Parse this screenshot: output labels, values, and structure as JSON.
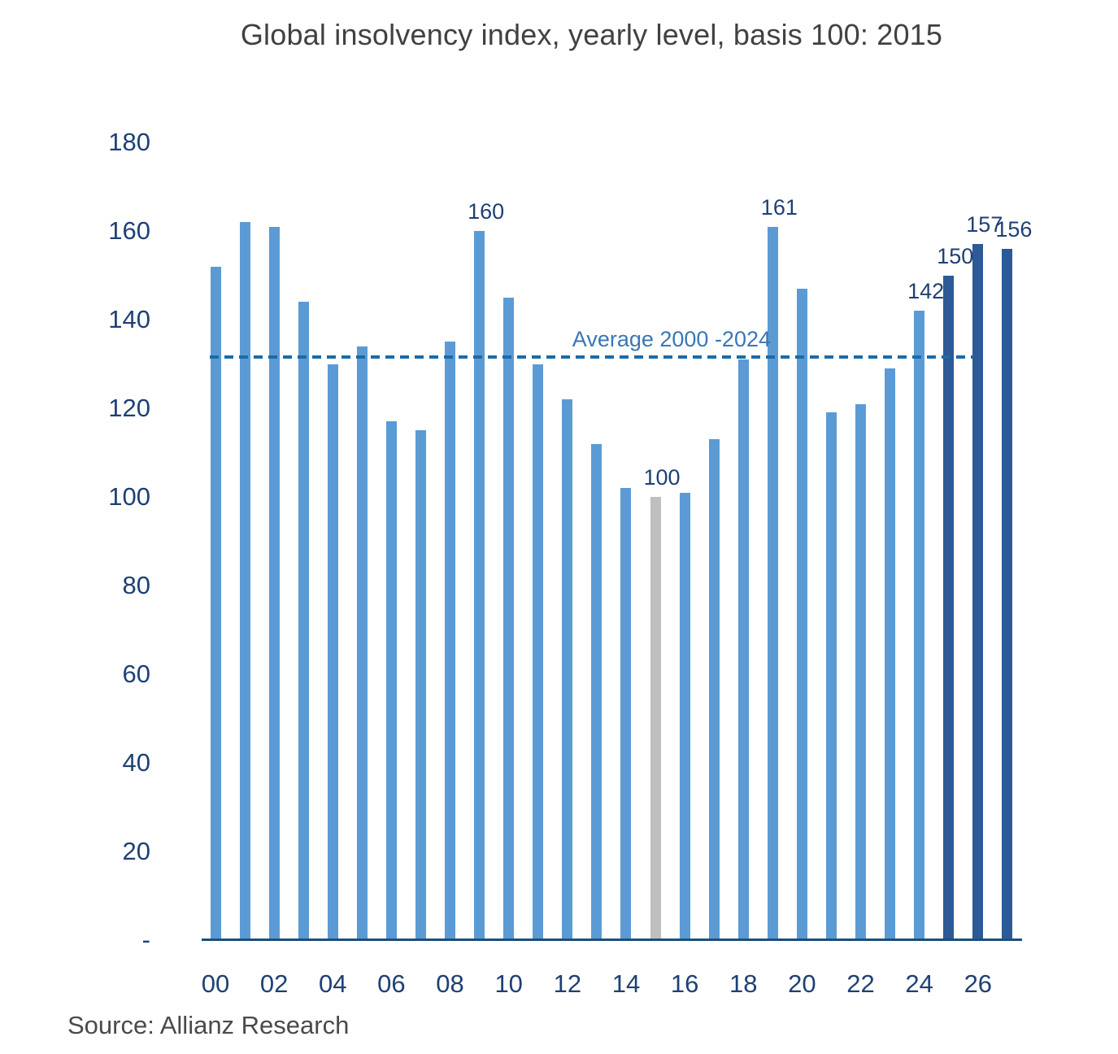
{
  "title": "Global insolvency index, yearly level, basis 100: 2015",
  "source": "Source: Allianz Research",
  "chart_data": {
    "type": "bar",
    "title": "Global insolvency index, yearly level, basis 100: 2015",
    "xlabel": "",
    "ylabel": "",
    "ylim": [
      0,
      180
    ],
    "grid": false,
    "legend": null,
    "ytick_values": [
      180,
      160,
      140,
      120,
      100,
      80,
      60,
      40,
      20,
      0
    ],
    "ytick_labels": [
      "180",
      "160",
      "140",
      "120",
      "100",
      "80",
      "60",
      "40",
      "20",
      "-"
    ],
    "points": [
      {
        "year": "00",
        "value": 152,
        "style": "light",
        "label": ""
      },
      {
        "year": "01",
        "value": 162,
        "style": "light",
        "label": ""
      },
      {
        "year": "02",
        "value": 161,
        "style": "light",
        "label": ""
      },
      {
        "year": "03",
        "value": 144,
        "style": "light",
        "label": ""
      },
      {
        "year": "04",
        "value": 130,
        "style": "light",
        "label": ""
      },
      {
        "year": "05",
        "value": 134,
        "style": "light",
        "label": ""
      },
      {
        "year": "06",
        "value": 117,
        "style": "light",
        "label": ""
      },
      {
        "year": "07",
        "value": 115,
        "style": "light",
        "label": ""
      },
      {
        "year": "08",
        "value": 135,
        "style": "light",
        "label": ""
      },
      {
        "year": "09",
        "value": 160,
        "style": "light",
        "label": "160"
      },
      {
        "year": "10",
        "value": 145,
        "style": "light",
        "label": ""
      },
      {
        "year": "11",
        "value": 130,
        "style": "light",
        "label": ""
      },
      {
        "year": "12",
        "value": 122,
        "style": "light",
        "label": ""
      },
      {
        "year": "13",
        "value": 112,
        "style": "light",
        "label": ""
      },
      {
        "year": "14",
        "value": 102,
        "style": "light",
        "label": ""
      },
      {
        "year": "15",
        "value": 100,
        "style": "gray",
        "label": "100"
      },
      {
        "year": "16",
        "value": 101,
        "style": "light",
        "label": ""
      },
      {
        "year": "17",
        "value": 113,
        "style": "light",
        "label": ""
      },
      {
        "year": "18",
        "value": 131,
        "style": "light",
        "label": ""
      },
      {
        "year": "19",
        "value": 161,
        "style": "light",
        "label": "161"
      },
      {
        "year": "20",
        "value": 147,
        "style": "light",
        "label": ""
      },
      {
        "year": "21",
        "value": 119,
        "style": "light",
        "label": ""
      },
      {
        "year": "22",
        "value": 121,
        "style": "light",
        "label": ""
      },
      {
        "year": "23",
        "value": 129,
        "style": "light",
        "label": ""
      },
      {
        "year": "24",
        "value": 142,
        "style": "light",
        "label": "142"
      },
      {
        "year": "25",
        "value": 150,
        "style": "dark",
        "label": "150"
      },
      {
        "year": "26",
        "value": 157,
        "style": "dark",
        "label": "157"
      },
      {
        "year": "27",
        "value": 156,
        "style": "dark",
        "label": "156"
      }
    ],
    "xtick_shown_years": [
      "00",
      "02",
      "04",
      "06",
      "08",
      "10",
      "12",
      "14",
      "16",
      "18",
      "20",
      "22",
      "24",
      "26"
    ],
    "average_line": {
      "label": "Average 2000 -2024",
      "value": 131.5,
      "style": "dashed"
    },
    "colors": {
      "bar_light": "#5B9BD5",
      "bar_gray": "#BFBFBF",
      "bar_dark": "#2B5A96",
      "axis_text": "#1E4075",
      "value_label": "#1E4075",
      "avg_line": "#1B6CA8",
      "avg_label": "#3A76B5",
      "axis_line": "#1F4E79",
      "title_text": "#414141",
      "source_text": "#4A4A4A"
    }
  }
}
